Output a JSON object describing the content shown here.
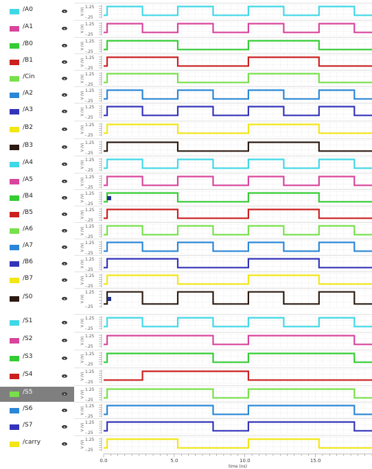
{
  "chart_data": {
    "type": "line",
    "xlabel": "time (ns)",
    "xlim": [
      0,
      19
    ],
    "x_ticks": [
      {
        "value": 0,
        "label": "0.0"
      },
      {
        "value": 5,
        "label": "5.0"
      },
      {
        "value": 10,
        "label": "10.0"
      },
      {
        "value": 15,
        "label": "15.0"
      }
    ],
    "y_axis": {
      "ylabel": "V (V)",
      "tick_labels": [
        "1.25",
        "-.25"
      ],
      "ylim": [
        -0.25,
        1.25
      ]
    },
    "grid": true,
    "legend": "left",
    "series": [
      {
        "name": "/A0",
        "color": "#3fd8e6",
        "x": [
          0,
          0.25,
          2.75,
          5.25,
          7.75,
          10.25,
          12.75,
          15.25,
          17.75,
          19
        ],
        "y": [
          0,
          1.2,
          0,
          1.2,
          0,
          1.2,
          0,
          1.2,
          0,
          0
        ]
      },
      {
        "name": "/A1",
        "color": "#d9449c",
        "x": [
          0,
          0.25,
          2.75,
          5.25,
          7.75,
          10.25,
          12.75,
          15.25,
          17.75,
          19
        ],
        "y": [
          0,
          1.2,
          0,
          1.2,
          0,
          1.2,
          0,
          1.2,
          0,
          0
        ]
      },
      {
        "name": "/B0",
        "color": "#33cc33",
        "x": [
          0,
          0.25,
          5.25,
          10.25,
          15.25,
          19
        ],
        "y": [
          0,
          1.2,
          0,
          1.2,
          0,
          0
        ]
      },
      {
        "name": "/B1",
        "color": "#cc1f1f",
        "x": [
          0,
          0.25,
          5.25,
          10.25,
          15.25,
          19
        ],
        "y": [
          0,
          1.2,
          0,
          1.2,
          0,
          0
        ]
      },
      {
        "name": "/Cin",
        "color": "#77e04a",
        "x": [
          0,
          0.25,
          5.25,
          10.25,
          15.25,
          19
        ],
        "y": [
          0,
          1.2,
          0,
          1.2,
          0,
          0
        ]
      },
      {
        "name": "/A2",
        "color": "#2a86d6",
        "x": [
          0,
          0.25,
          2.75,
          5.25,
          7.75,
          10.25,
          12.75,
          15.25,
          17.75,
          19
        ],
        "y": [
          0,
          1.2,
          0,
          1.2,
          0,
          1.2,
          0,
          1.2,
          0,
          0
        ]
      },
      {
        "name": "/A3",
        "color": "#3333bb",
        "x": [
          0,
          0.25,
          2.75,
          5.25,
          7.75,
          10.25,
          12.75,
          15.25,
          17.75,
          19
        ],
        "y": [
          0,
          1.2,
          0,
          1.2,
          0,
          1.2,
          0,
          1.2,
          0,
          0
        ]
      },
      {
        "name": "/B2",
        "color": "#f2e614",
        "x": [
          0,
          0.25,
          5.25,
          10.25,
          15.25,
          19
        ],
        "y": [
          0,
          1.2,
          0,
          1.2,
          0,
          0
        ]
      },
      {
        "name": "/B3",
        "color": "#2b1a10",
        "x": [
          0,
          0.25,
          5.25,
          10.25,
          15.25,
          19
        ],
        "y": [
          0,
          1.2,
          0,
          1.2,
          0,
          0
        ]
      },
      {
        "name": "/A4",
        "color": "#3fd8e6",
        "x": [
          0,
          0.25,
          2.75,
          5.25,
          7.75,
          10.25,
          12.75,
          15.25,
          17.75,
          19
        ],
        "y": [
          0,
          1.2,
          0,
          1.2,
          0,
          1.2,
          0,
          1.2,
          0,
          0
        ]
      },
      {
        "name": "/A5",
        "color": "#d9449c",
        "x": [
          0,
          0.25,
          2.75,
          5.25,
          7.75,
          10.25,
          12.75,
          15.25,
          17.75,
          19
        ],
        "y": [
          0,
          1.2,
          0,
          1.2,
          0,
          1.2,
          0,
          1.2,
          0,
          0
        ]
      },
      {
        "name": "/B4",
        "color": "#33cc33",
        "x": [
          0,
          0.25,
          5.25,
          10.25,
          15.25,
          19
        ],
        "y": [
          0,
          1.2,
          0,
          1.2,
          0,
          0
        ]
      },
      {
        "name": "/B5",
        "color": "#cc1f1f",
        "x": [
          0,
          0.25,
          5.25,
          10.25,
          15.25,
          19
        ],
        "y": [
          0,
          1.2,
          0,
          1.2,
          0,
          0
        ]
      },
      {
        "name": "/A6",
        "color": "#77e04a",
        "x": [
          0,
          0.25,
          2.75,
          5.25,
          7.75,
          10.25,
          12.75,
          15.25,
          17.75,
          19
        ],
        "y": [
          0,
          1.2,
          0,
          1.2,
          0,
          1.2,
          0,
          1.2,
          0,
          0
        ]
      },
      {
        "name": "/A7",
        "color": "#2a86d6",
        "x": [
          0,
          0.25,
          2.75,
          5.25,
          7.75,
          10.25,
          12.75,
          15.25,
          17.75,
          19
        ],
        "y": [
          0,
          1.2,
          0,
          1.2,
          0,
          1.2,
          0,
          1.2,
          0,
          0
        ]
      },
      {
        "name": "/B6",
        "color": "#3333bb",
        "x": [
          0,
          0.25,
          5.25,
          10.25,
          15.25,
          19
        ],
        "y": [
          0,
          1.2,
          0,
          1.2,
          0,
          0
        ]
      },
      {
        "name": "/B7",
        "color": "#f2e614",
        "x": [
          0,
          0.25,
          5.25,
          10.25,
          15.25,
          19
        ],
        "y": [
          0,
          1.2,
          0,
          1.2,
          0,
          0
        ]
      },
      {
        "name": "/S0",
        "color": "#2b1a10",
        "x": [
          0,
          0.25,
          2.75,
          5.25,
          7.75,
          10.25,
          12.75,
          15.25,
          17.75,
          19
        ],
        "y": [
          0,
          1.2,
          0,
          1.2,
          0,
          1.2,
          0,
          1.2,
          0,
          0
        ]
      },
      {
        "name": "/S1",
        "color": "#3fd8e6",
        "x": [
          0,
          0.25,
          2.75,
          5.25,
          7.75,
          10.25,
          12.75,
          15.25,
          17.75,
          19
        ],
        "y": [
          0,
          1.2,
          0,
          1.2,
          0,
          1.2,
          0,
          1.2,
          0,
          0
        ]
      },
      {
        "name": "/S2",
        "color": "#d9449c",
        "x": [
          0,
          0.25,
          7.75,
          10.25,
          17.75,
          19
        ],
        "y": [
          0,
          1.2,
          0,
          1.2,
          0,
          0
        ]
      },
      {
        "name": "/S3",
        "color": "#33cc33",
        "x": [
          0,
          0.25,
          7.75,
          10.25,
          17.75,
          19
        ],
        "y": [
          0,
          1.2,
          0,
          1.2,
          0,
          0
        ]
      },
      {
        "name": "/S4",
        "color": "#cc1f1f",
        "x": [
          0,
          0.25,
          2.75,
          10.25,
          19
        ],
        "y": [
          0,
          0,
          1.2,
          0,
          0
        ]
      },
      {
        "name": "/S5",
        "color": "#77e04a",
        "x": [
          0,
          0.25,
          7.75,
          10.25,
          17.75,
          19
        ],
        "y": [
          0,
          1.2,
          0,
          1.2,
          0,
          0
        ]
      },
      {
        "name": "/S6",
        "color": "#2a86d6",
        "x": [
          0,
          0.25,
          7.75,
          10.25,
          17.75,
          19
        ],
        "y": [
          0,
          1.2,
          0,
          1.2,
          0,
          0
        ]
      },
      {
        "name": "/S7",
        "color": "#3333bb",
        "x": [
          0,
          0.25,
          7.75,
          10.25,
          17.75,
          19
        ],
        "y": [
          0,
          1.2,
          0,
          1.2,
          0,
          0
        ]
      },
      {
        "name": "/carry",
        "color": "#f2e614",
        "x": [
          0,
          0.25,
          5.25,
          10.25,
          15.25,
          19
        ],
        "y": [
          0,
          1.2,
          0,
          1.2,
          0,
          0
        ]
      }
    ]
  },
  "sidebar": {
    "selected": "/S5"
  }
}
